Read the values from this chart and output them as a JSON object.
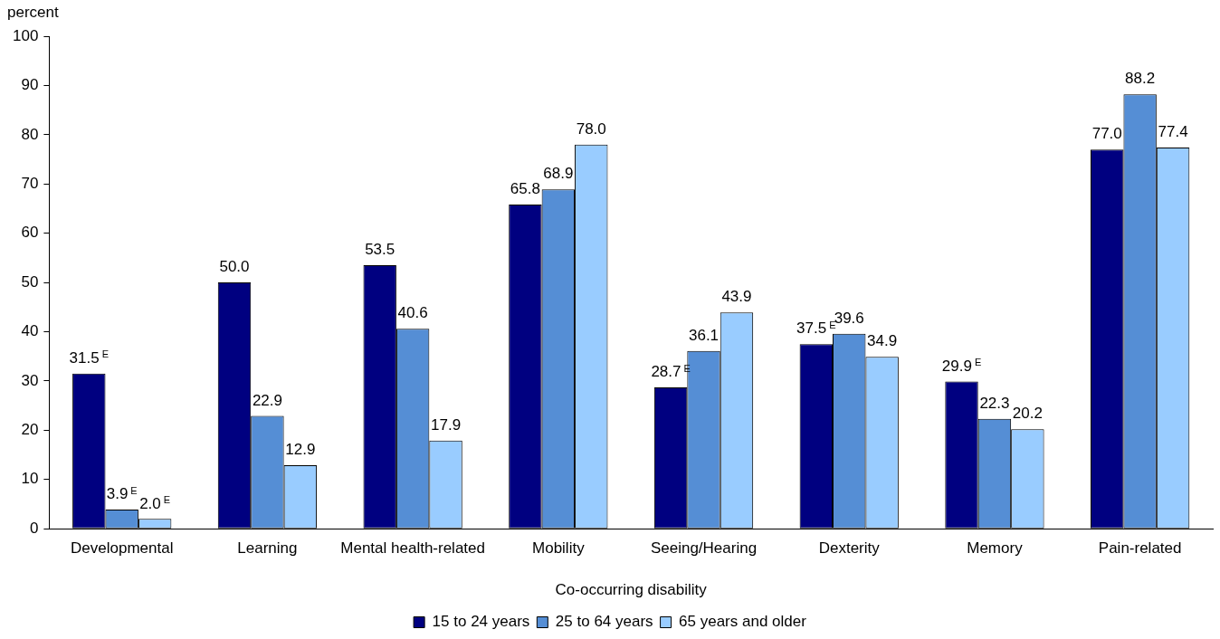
{
  "chart_data": {
    "type": "bar",
    "ylabel": "percent",
    "xlabel": "Co-occurring disability",
    "categories": [
      "Developmental",
      "Learning",
      "Mental health-related",
      "Mobility",
      "Seeing/Hearing",
      "Dexterity",
      "Memory",
      "Pain-related"
    ],
    "series": [
      {
        "name": "15 to 24 years",
        "color": "#000080",
        "values": [
          31.5,
          50.0,
          53.5,
          65.8,
          28.7,
          37.5,
          29.9,
          77.0
        ],
        "value_labels": [
          "31.5$^{E}$",
          "50.0",
          "53.5",
          "65.8",
          "28.7$^{E}$",
          "37.5$^{E}$",
          "29.9$^{E}$",
          "77.0"
        ]
      },
      {
        "name": "25 to 64 years",
        "color": "#558ed5",
        "values": [
          3.9,
          22.9,
          40.6,
          68.9,
          36.1,
          39.6,
          22.3,
          88.2
        ],
        "value_labels": [
          "3.9$^{E}$",
          "22.9",
          "40.6",
          "68.9",
          "36.1",
          "39.6",
          "22.3",
          "88.2"
        ]
      },
      {
        "name": "65 years and older",
        "color": "#99ccff",
        "values": [
          2.0,
          12.9,
          17.9,
          78.0,
          43.9,
          34.9,
          20.2,
          77.4
        ],
        "value_labels": [
          "2.0$^{E}$",
          "12.9",
          "17.9",
          "78.0",
          "43.9",
          "34.9",
          "20.2",
          "77.4"
        ]
      }
    ],
    "ylim": [
      0,
      100
    ],
    "yticks": [
      0,
      10,
      20,
      30,
      40,
      50,
      60,
      70,
      80,
      90,
      100
    ],
    "grid": false,
    "legend": "bottom"
  }
}
